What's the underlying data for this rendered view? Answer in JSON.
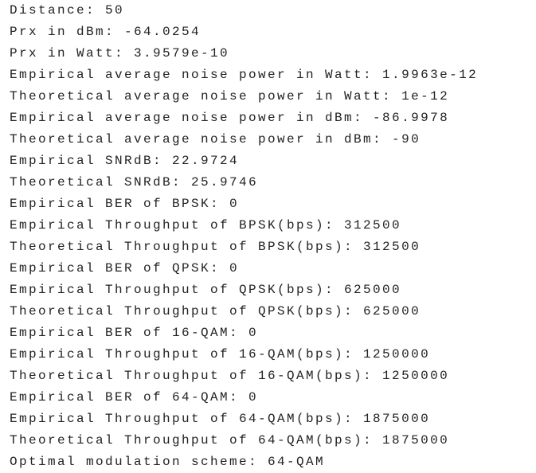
{
  "lines": [
    "Distance: 50",
    "Prx in dBm: -64.0254",
    "Prx in Watt: 3.9579e-10",
    "Empirical average noise power in Watt: 1.9963e-12",
    "Theoretical average noise power in Watt: 1e-12",
    "Empirical average noise power in dBm: -86.9978",
    "Theoretical average noise power in dBm: -90",
    "Empirical SNRdB: 22.9724",
    "Theoretical SNRdB: 25.9746",
    "Empirical BER of BPSK: 0",
    "Empirical Throughput of BPSK(bps): 312500",
    "Theoretical Throughput of BPSK(bps): 312500",
    "Empirical BER of QPSK: 0",
    "Empirical Throughput of QPSK(bps): 625000",
    "Theoretical Throughput of QPSK(bps): 625000",
    "Empirical BER of 16-QAM: 0",
    "Empirical Throughput of 16-QAM(bps): 1250000",
    "Theoretical Throughput of 16-QAM(bps): 1250000",
    "Empirical BER of 64-QAM: 0",
    "Empirical Throughput of 64-QAM(bps): 1875000",
    "Theoretical Throughput of 64-QAM(bps): 1875000",
    "Optimal modulation scheme: 64-QAM"
  ]
}
